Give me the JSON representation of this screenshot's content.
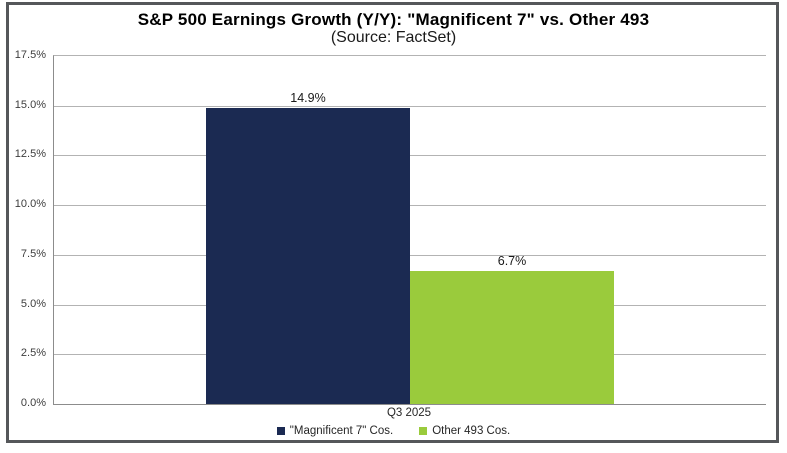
{
  "header": {
    "title": "S&P 500 Earnings Growth (Y/Y): \"Magnificent 7\" vs. Other 493",
    "subtitle": "(Source: FactSet)"
  },
  "chart_data": {
    "type": "bar",
    "title": "S&P 500 Earnings Growth (Y/Y): \"Magnificent 7\" vs. Other 493",
    "subtitle": "(Source: FactSet)",
    "categories": [
      "Q3 2025"
    ],
    "series": [
      {
        "name": "\"Magnificent 7\" Cos.",
        "values": [
          14.9
        ],
        "value_labels": [
          "14.9%"
        ],
        "color": "#1b2a52"
      },
      {
        "name": "Other 493 Cos.",
        "values": [
          6.7
        ],
        "value_labels": [
          "6.7%"
        ],
        "color": "#9acb3c"
      }
    ],
    "xlabel": "",
    "ylabel": "",
    "ylim": [
      0,
      17.5
    ],
    "yticks": [
      "17.5%",
      "15.0%",
      "12.5%",
      "10.0%",
      "7.5%",
      "5.0%",
      "2.5%",
      "0.0%"
    ],
    "ytick_values": [
      17.5,
      15.0,
      12.5,
      10.0,
      7.5,
      5.0,
      2.5,
      0.0
    ],
    "grid": true,
    "legend_position": "bottom"
  },
  "colors": {
    "magnificent7_bar": "#1b2a52",
    "other493_bar": "#9acb3c",
    "gridline": "#b3b3b3",
    "axis_line": "#8c8c8c",
    "outer_border": "#55575a"
  }
}
